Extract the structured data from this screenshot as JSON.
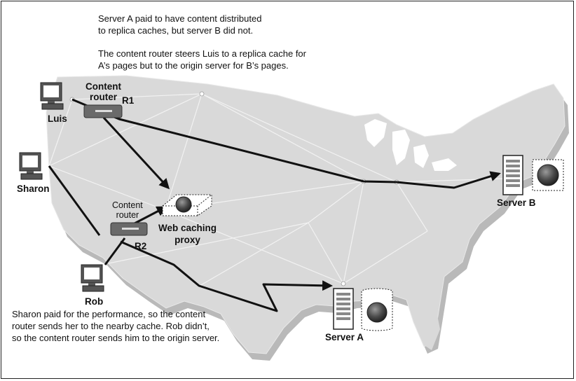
{
  "notes": {
    "top_line1": "Server A paid to have content distributed",
    "top_line2": "to replica caches, but server B did not.",
    "mid_line1": "The content router steers Luis to a replica cache for",
    "mid_line2": "A’s pages but to the origin server for B’s pages.",
    "bottom_line1": "Sharon paid for the performance, so the content",
    "bottom_line2": "router sends her to the nearby cache. Rob didn’t,",
    "bottom_line3": "so the content router sends him to the origin server."
  },
  "clients": {
    "luis": "Luis",
    "sharon": "Sharon",
    "rob": "Rob"
  },
  "routers": {
    "r1_title_line1": "Content",
    "r1_title_line2": "router",
    "r1_id": "R1",
    "r2_title_line1": "Content",
    "r2_title_line2": "router",
    "r2_id": "R2"
  },
  "proxy": {
    "line1": "Web caching",
    "line2": "proxy"
  },
  "servers": {
    "a": "Server A",
    "b": "Server B"
  },
  "icons": [
    "computer-icon",
    "router-icon",
    "server-icon",
    "globe-icon",
    "cache-icon"
  ]
}
